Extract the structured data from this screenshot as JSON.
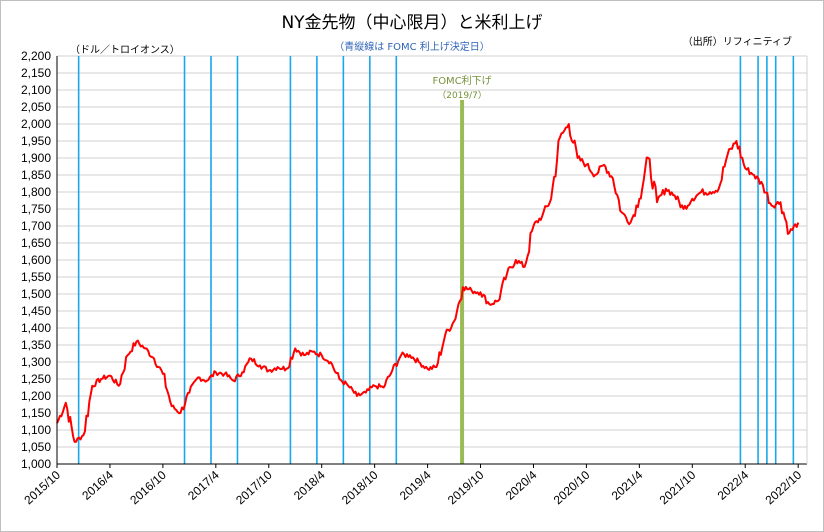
{
  "chart_data": {
    "type": "line",
    "title": "NY金先物（中心限月）と米利上げ",
    "subtitle": "（青縦線は FOMC 利上げ決定日）",
    "unit": "（ドル／トロイオンス）",
    "source": "（出所）リフィニティブ",
    "ylim": [
      1000,
      2200
    ],
    "y_ticks": [
      "1,000",
      "1,050",
      "1,100",
      "1,150",
      "1,200",
      "1,250",
      "1,300",
      "1,350",
      "1,400",
      "1,450",
      "1,500",
      "1,550",
      "1,600",
      "1,650",
      "1,700",
      "1,750",
      "1,800",
      "1,850",
      "1,900",
      "1,950",
      "2,000",
      "2,050",
      "2,100",
      "2,150",
      "2,200"
    ],
    "x_ticks": [
      "2015/10",
      "2016/4",
      "2016/10",
      "2017/4",
      "2017/10",
      "2018/4",
      "2018/10",
      "2019/4",
      "2019/10",
      "2020/4",
      "2020/10",
      "2021/4",
      "2021/10",
      "2022/4",
      "2022/10"
    ],
    "grid": true,
    "series": [
      {
        "color": "#ff0000",
        "x": [
          "2015/10",
          "2015/11",
          "2015/12",
          "2016/1",
          "2016/2",
          "2016/3",
          "2016/4",
          "2016/5",
          "2016/6",
          "2016/7",
          "2016/8",
          "2016/9",
          "2016/10",
          "2016/11",
          "2016/12",
          "2017/1",
          "2017/2",
          "2017/3",
          "2017/4",
          "2017/5",
          "2017/6",
          "2017/7",
          "2017/8",
          "2017/9",
          "2017/10",
          "2017/11",
          "2017/12",
          "2018/1",
          "2018/2",
          "2018/3",
          "2018/4",
          "2018/5",
          "2018/6",
          "2018/7",
          "2018/8",
          "2018/9",
          "2018/10",
          "2018/11",
          "2018/12",
          "2019/1",
          "2019/2",
          "2019/3",
          "2019/4",
          "2019/5",
          "2019/6",
          "2019/7",
          "2019/8",
          "2019/9",
          "2019/10",
          "2019/11",
          "2019/12",
          "2020/1",
          "2020/2",
          "2020/3",
          "2020/4",
          "2020/5",
          "2020/6",
          "2020/7",
          "2020/8",
          "2020/9",
          "2020/10",
          "2020/11",
          "2020/12",
          "2021/1",
          "2021/2",
          "2021/3",
          "2021/4",
          "2021/5",
          "2021/6",
          "2021/7",
          "2021/8",
          "2021/9",
          "2021/10",
          "2021/11",
          "2021/12",
          "2022/1",
          "2022/2",
          "2022/3",
          "2022/4",
          "2022/5",
          "2022/6",
          "2022/7",
          "2022/8",
          "2022/9",
          "2022/10"
        ],
        "values": [
          1120,
          1180,
          1065,
          1085,
          1230,
          1250,
          1260,
          1230,
          1320,
          1360,
          1340,
          1310,
          1265,
          1170,
          1150,
          1210,
          1255,
          1245,
          1270,
          1265,
          1245,
          1270,
          1310,
          1290,
          1275,
          1285,
          1280,
          1340,
          1320,
          1330,
          1320,
          1300,
          1250,
          1230,
          1200,
          1210,
          1230,
          1225,
          1275,
          1320,
          1320,
          1300,
          1280,
          1285,
          1380,
          1420,
          1520,
          1510,
          1505,
          1470,
          1480,
          1560,
          1600,
          1580,
          1700,
          1730,
          1780,
          1960,
          2000,
          1900,
          1880,
          1850,
          1880,
          1840,
          1740,
          1710,
          1780,
          1900,
          1770,
          1810,
          1790,
          1750,
          1780,
          1800,
          1800,
          1810,
          1910,
          1950,
          1870,
          1850,
          1820,
          1760,
          1770,
          1680,
          1710
        ]
      }
    ],
    "fomc_hikes": [
      "2015/12",
      "2016/12",
      "2017/3",
      "2017/6",
      "2017/12",
      "2018/3",
      "2018/6",
      "2018/9",
      "2018/12",
      "2022/3",
      "2022/5",
      "2022/6",
      "2022/7",
      "2022/9"
    ],
    "fomc_cut": {
      "date": "2019/7",
      "label": "FOMC利下げ",
      "date_label": "（2019/7）"
    }
  }
}
